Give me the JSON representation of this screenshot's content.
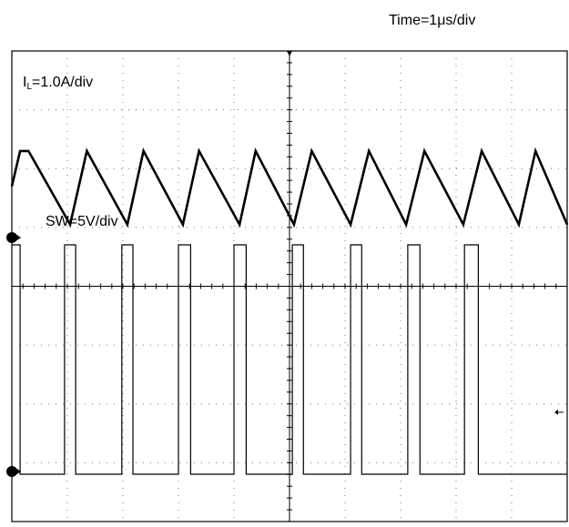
{
  "chart_data": {
    "type": "line",
    "title": "",
    "timebase_label": "Time=1μs/div",
    "divisions": {
      "x": 10,
      "y": 8
    },
    "grid": "dotted",
    "series": [
      {
        "name": "IL=1.0A/div",
        "label_main": "I",
        "label_sub": "L",
        "label_rest": "=1.0A/div",
        "unit": "A",
        "scale_per_div": 1.0,
        "x": [
          0.0,
          0.15,
          0.3,
          1.05,
          1.35,
          2.08,
          2.37,
          3.08,
          3.37,
          4.1,
          4.39,
          5.08,
          5.4,
          6.1,
          6.43,
          7.1,
          7.43,
          8.13,
          8.46,
          9.13,
          9.43,
          10.0
        ],
        "y": [
          -0.8,
          -0.2,
          -0.2,
          -1.45,
          -0.2,
          -1.45,
          -0.2,
          -1.45,
          -0.2,
          -1.45,
          -0.2,
          -1.45,
          -0.2,
          -1.45,
          -0.2,
          -1.45,
          -0.2,
          -1.45,
          -0.2,
          -1.45,
          -0.2,
          -1.45
        ]
      },
      {
        "name": "SW=5V/div",
        "unit": "V",
        "scale_per_div": 5,
        "x": [
          0.0,
          0.15,
          0.15,
          0.95,
          0.95,
          1.15,
          1.15,
          1.98,
          1.98,
          2.18,
          2.18,
          3.0,
          3.0,
          3.22,
          3.22,
          4.0,
          4.0,
          4.22,
          4.22,
          5.05,
          5.05,
          5.25,
          5.25,
          6.1,
          6.1,
          6.3,
          6.3,
          7.13,
          7.13,
          7.35,
          7.35,
          8.15,
          8.15,
          8.4,
          8.4,
          10.0
        ],
        "y": [
          19.5,
          19.5,
          0,
          0,
          19.5,
          19.5,
          0,
          0,
          19.5,
          19.5,
          0,
          0,
          19.5,
          19.5,
          0,
          0,
          19.5,
          19.5,
          0,
          0,
          19.5,
          19.5,
          0,
          0,
          19.5,
          19.5,
          0,
          0,
          19.5,
          19.5,
          0,
          0,
          19.5,
          19.5,
          0,
          0
        ]
      }
    ],
    "channel_markers": [
      "ch1-ground",
      "ch2-ground"
    ]
  }
}
